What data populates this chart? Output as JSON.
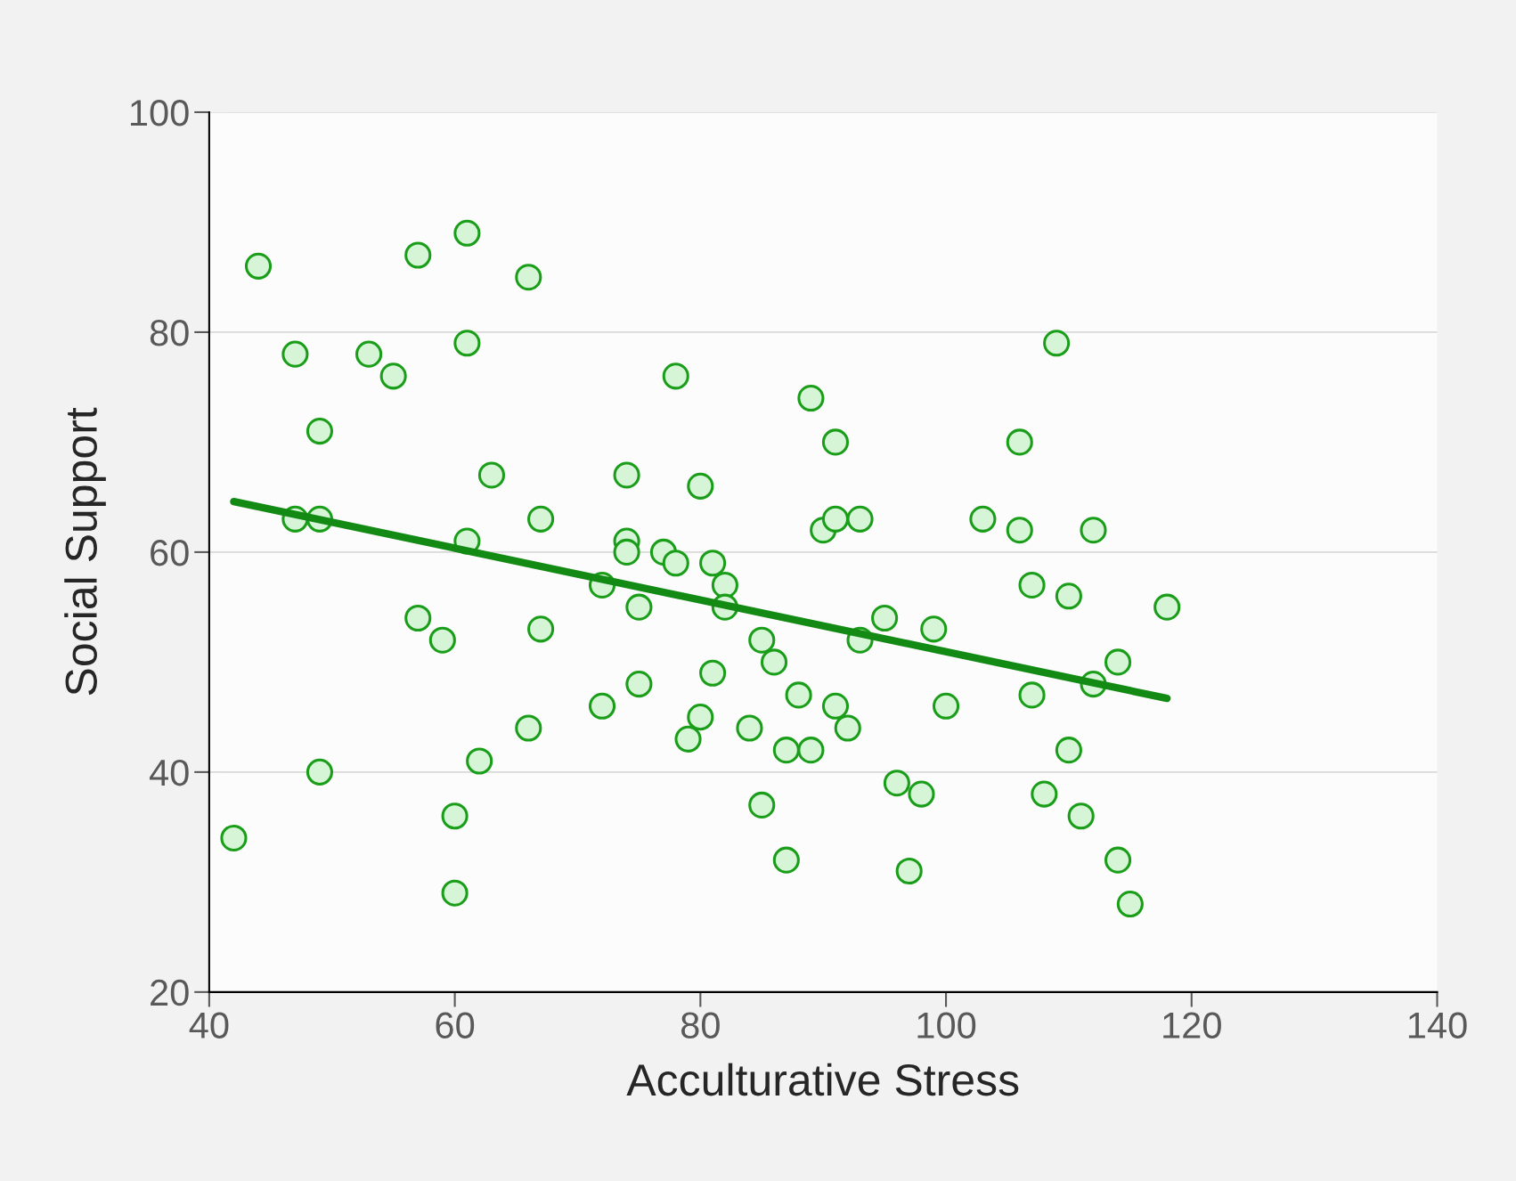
{
  "chart_data": {
    "type": "scatter",
    "xlabel": "Acculturative Stress",
    "ylabel": "Social Support",
    "xlim": [
      40,
      140
    ],
    "xticks": [
      40,
      60,
      80,
      100,
      120,
      140
    ],
    "ylim": [
      20,
      100
    ],
    "yticks": [
      20,
      40,
      60,
      80,
      100
    ],
    "grid": "y",
    "legend": false,
    "marker": "circle",
    "series": [
      {
        "color": "#1a9e1a",
        "x": [
          44,
          57,
          61,
          66,
          47,
          53,
          55,
          61,
          49,
          63,
          47,
          49,
          61,
          67,
          74,
          74,
          74,
          77,
          78,
          78,
          80,
          81,
          82,
          82,
          72,
          75,
          57,
          59,
          67,
          72,
          75,
          66,
          62,
          49,
          42,
          60,
          60,
          89,
          91,
          90,
          91,
          93,
          81,
          80,
          79,
          85,
          86,
          88,
          84,
          87,
          89,
          85,
          87,
          91,
          92,
          93,
          95,
          99,
          100,
          96,
          98,
          97,
          103,
          106,
          106,
          109,
          107,
          110,
          112,
          118,
          114,
          112,
          107,
          110,
          108,
          111,
          114,
          115
        ],
        "values": [
          86,
          87,
          89,
          85,
          78,
          78,
          76,
          79,
          71,
          67,
          63,
          63,
          61,
          63,
          67,
          61,
          60,
          60,
          59,
          76,
          66,
          59,
          57,
          55,
          57,
          55,
          54,
          52,
          53,
          46,
          48,
          44,
          41,
          40,
          34,
          36,
          29,
          74,
          70,
          62,
          63,
          63,
          49,
          45,
          43,
          52,
          50,
          47,
          44,
          42,
          42,
          37,
          32,
          46,
          44,
          52,
          54,
          53,
          46,
          39,
          38,
          31,
          63,
          70,
          62,
          79,
          57,
          56,
          62,
          55,
          50,
          48,
          47,
          42,
          38,
          36,
          32,
          28
        ]
      },
      {
        "type": "line",
        "color": "#138a13",
        "x": [
          42,
          118
        ],
        "values": [
          64.6,
          46.7
        ],
        "marker": "none",
        "line_style": "solid"
      }
    ]
  }
}
